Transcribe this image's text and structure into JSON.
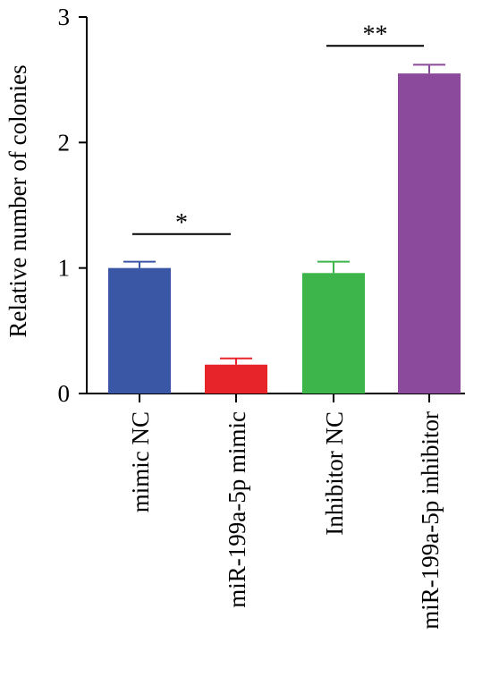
{
  "chart_data": {
    "type": "bar",
    "title": "",
    "xlabel": "",
    "ylabel": "Relative number of colonies",
    "ylim": [
      0,
      3
    ],
    "yticks": [
      0,
      1,
      2,
      3
    ],
    "ytick_labels": [
      "0",
      "1",
      "2",
      "3"
    ],
    "categories": [
      "mimic NC",
      "miR-199a-5p mimic",
      "Inhibitor NC",
      "miR-199a-5p inhibitor"
    ],
    "values": [
      1.0,
      0.23,
      0.96,
      2.55
    ],
    "errors": [
      0.05,
      0.05,
      0.09,
      0.07
    ],
    "colors": [
      "#3a57a6",
      "#e8242b",
      "#3db54a",
      "#8b4a9c"
    ],
    "grid": false,
    "legend": "none",
    "significance": [
      {
        "from": 0,
        "to": 1,
        "label": "*",
        "y": 1.27
      },
      {
        "from": 2,
        "to": 3,
        "label": "**",
        "y": 2.77
      }
    ]
  }
}
